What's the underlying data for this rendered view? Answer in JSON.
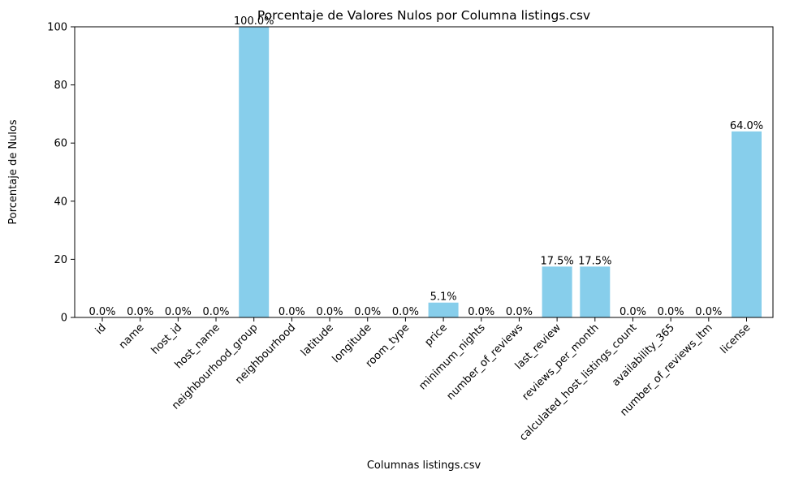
{
  "chart_data": {
    "type": "bar",
    "title": "Porcentaje de Valores Nulos por Columna listings.csv",
    "xlabel": "Columnas listings.csv",
    "ylabel": "Porcentaje de Nulos",
    "ylim": [
      0,
      100
    ],
    "yticks": [
      0,
      20,
      40,
      60,
      80,
      100
    ],
    "grid": false,
    "bar_color": "#87CEEB",
    "categories": [
      "id",
      "name",
      "host_id",
      "host_name",
      "neighbourhood_group",
      "neighbourhood",
      "latitude",
      "longitude",
      "room_type",
      "price",
      "minimum_nights",
      "number_of_reviews",
      "last_review",
      "reviews_per_month",
      "calculated_host_listings_count",
      "availability_365",
      "number_of_reviews_ltm",
      "license"
    ],
    "values": [
      0.0,
      0.0,
      0.0,
      0.0,
      100.0,
      0.0,
      0.0,
      0.0,
      0.0,
      5.1,
      0.0,
      0.0,
      17.5,
      17.5,
      0.0,
      0.0,
      0.0,
      64.0
    ],
    "value_labels": [
      "0.0%",
      "0.0%",
      "0.0%",
      "0.0%",
      "100.0%",
      "0.0%",
      "0.0%",
      "0.0%",
      "0.0%",
      "5.1%",
      "0.0%",
      "0.0%",
      "17.5%",
      "17.5%",
      "0.0%",
      "0.0%",
      "0.0%",
      "64.0%"
    ]
  }
}
